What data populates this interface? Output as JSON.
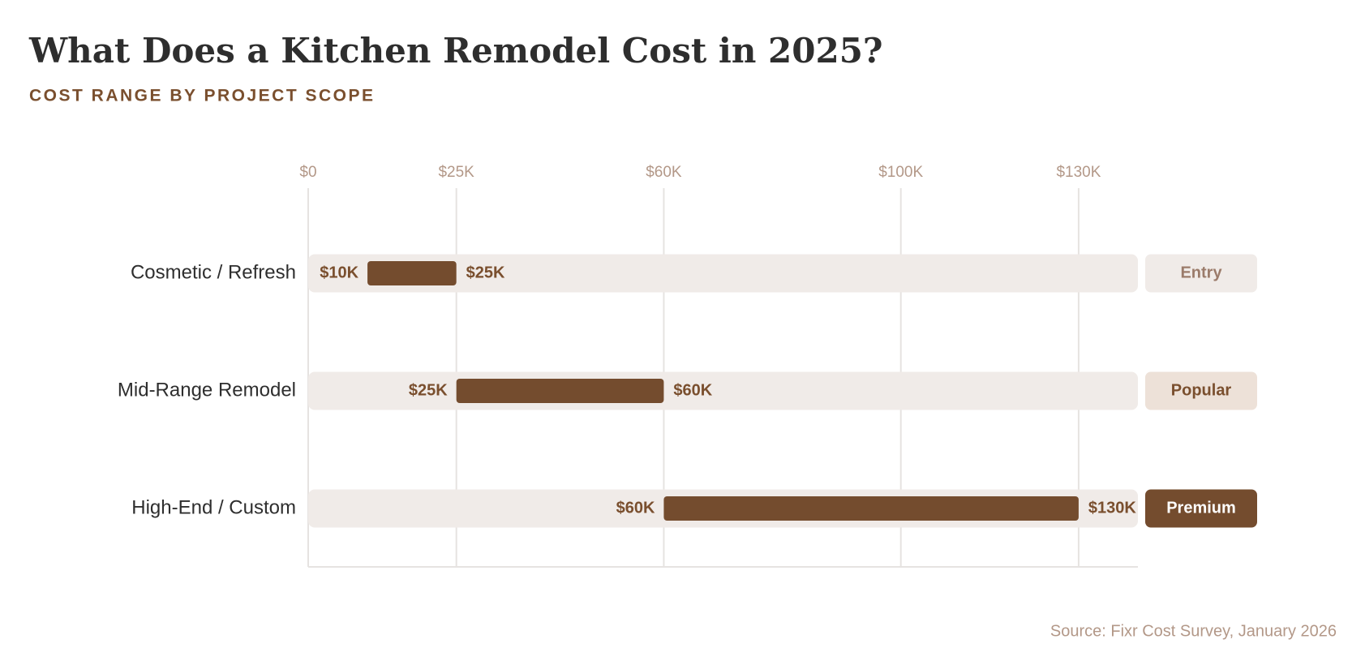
{
  "chart_data": {
    "type": "range-bar",
    "title": "What Does a Kitchen Remodel Cost in 2025?",
    "subtitle": "COST RANGE BY PROJECT SCOPE",
    "categories": [
      "Cosmetic / Refresh",
      "Mid-Range Remodel",
      "High-End / Custom"
    ],
    "low": [
      10000,
      25000,
      60000
    ],
    "high": [
      25000,
      60000,
      130000
    ],
    "low_labels": [
      "$10K",
      "$25K",
      "$60K"
    ],
    "high_labels": [
      "$25K",
      "$60K",
      "$130K"
    ],
    "badges": [
      "Entry",
      "Popular",
      "Premium"
    ],
    "color": "#744c2e",
    "track_color": "#f0ebe8",
    "xlim": [
      0,
      140000
    ],
    "xticks": [
      {
        "value": 0,
        "label": "$0"
      },
      {
        "value": 25000,
        "label": "$25K"
      },
      {
        "value": 60000,
        "label": "$60K"
      },
      {
        "value": 100000,
        "label": "$100K"
      },
      {
        "value": 130000,
        "label": "$130K"
      }
    ],
    "grid": true,
    "source": "Source: Fixr Cost Survey, January 2026"
  }
}
